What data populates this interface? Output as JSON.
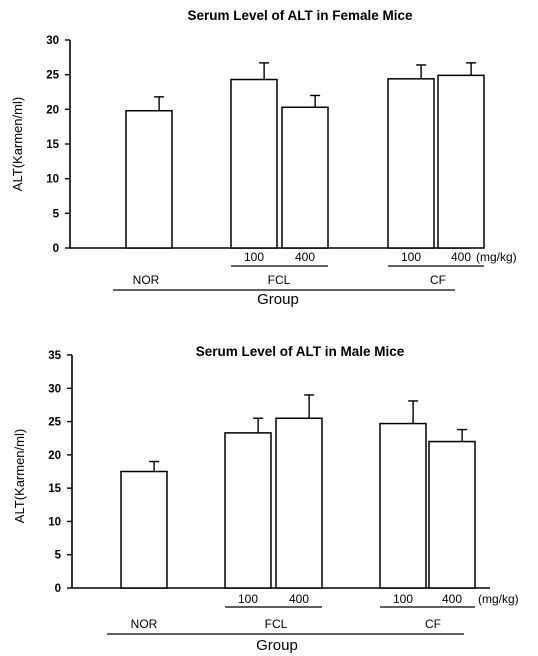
{
  "chart_data": [
    {
      "type": "bar",
      "title": "Serum Level of ALT in Female Mice",
      "ylabel": "ALT(Karmen/ml)",
      "xlabel": "Group",
      "ylim": [
        0,
        30
      ],
      "yticks": [
        "0",
        "5",
        "10",
        "15",
        "20",
        "25",
        "30"
      ],
      "unit_label": "(mg/kg)",
      "groups": [
        {
          "name": "NOR",
          "doses": []
        },
        {
          "name": "FCL",
          "doses": [
            "100",
            "400"
          ]
        },
        {
          "name": "CF",
          "doses": [
            "100",
            "400"
          ]
        }
      ],
      "categories": [
        "NOR",
        "FCL 100",
        "FCL 400",
        "CF 100",
        "CF 400"
      ],
      "values": [
        19.8,
        24.3,
        20.3,
        24.4,
        24.9
      ],
      "errors": [
        2.0,
        2.4,
        1.7,
        2.0,
        1.8
      ],
      "grid": false
    },
    {
      "type": "bar",
      "title": "Serum Level of ALT in Male Mice",
      "ylabel": "ALT(Karmen/ml)",
      "xlabel": "Group",
      "ylim": [
        0,
        35
      ],
      "yticks": [
        "0",
        "5",
        "10",
        "15",
        "20",
        "25",
        "30",
        "35"
      ],
      "unit_label": "(mg/kg)",
      "groups": [
        {
          "name": "NOR",
          "doses": []
        },
        {
          "name": "FCL",
          "doses": [
            "100",
            "400"
          ]
        },
        {
          "name": "CF",
          "doses": [
            "100",
            "400"
          ]
        }
      ],
      "categories": [
        "NOR",
        "FCL 100",
        "FCL 400",
        "CF 100",
        "CF 400"
      ],
      "values": [
        17.5,
        23.3,
        25.5,
        24.7,
        22.0
      ],
      "errors": [
        1.5,
        2.2,
        3.5,
        3.4,
        1.8
      ],
      "grid": false
    }
  ]
}
